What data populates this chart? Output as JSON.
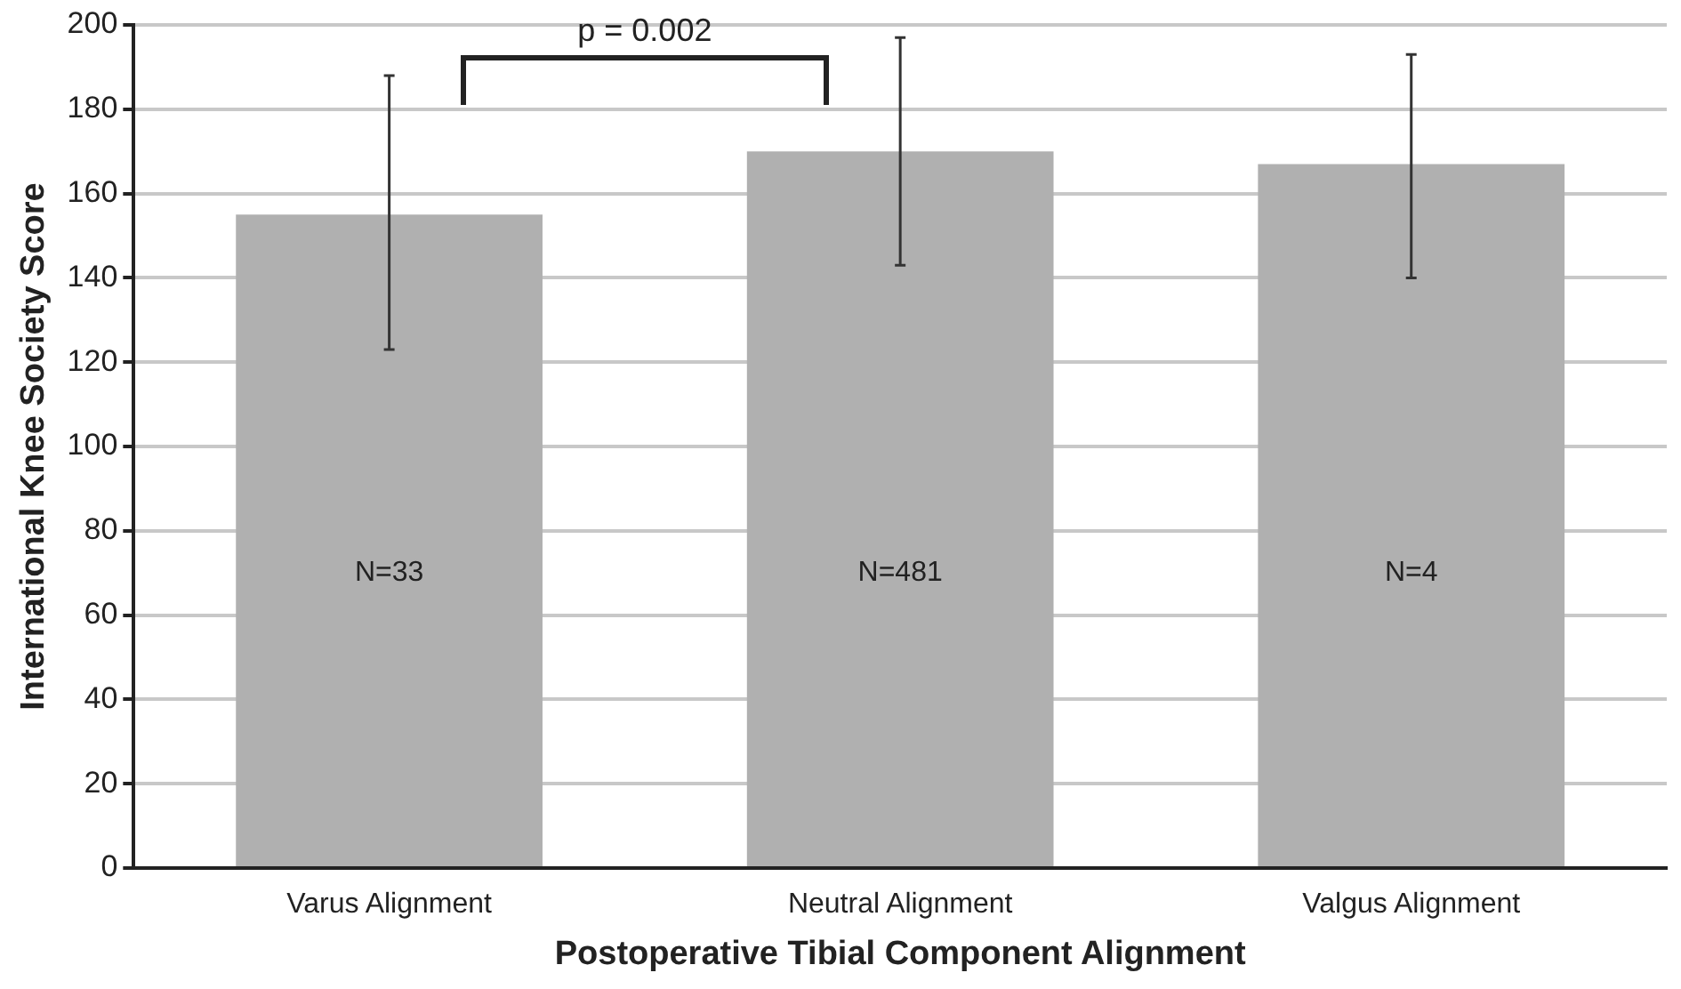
{
  "chart_data": {
    "type": "bar",
    "xlabel": "Postoperative Tibial Component Alignment",
    "ylabel": "International Knee Society Score",
    "categories": [
      "Varus Alignment",
      "Neutral Alignment",
      "Valgus Alignment"
    ],
    "values": [
      155,
      170,
      167
    ],
    "color": "#b0b0b0",
    "errors": [
      [
        123,
        188
      ],
      [
        143,
        197
      ],
      [
        140,
        193
      ]
    ],
    "ylim": [
      0,
      200
    ],
    "yticks": [
      0,
      20,
      40,
      60,
      80,
      100,
      120,
      140,
      160,
      180,
      200
    ],
    "grid": "y",
    "annotations": [
      "N=33",
      "N=481",
      "N=4",
      "p = 0.002"
    ]
  }
}
